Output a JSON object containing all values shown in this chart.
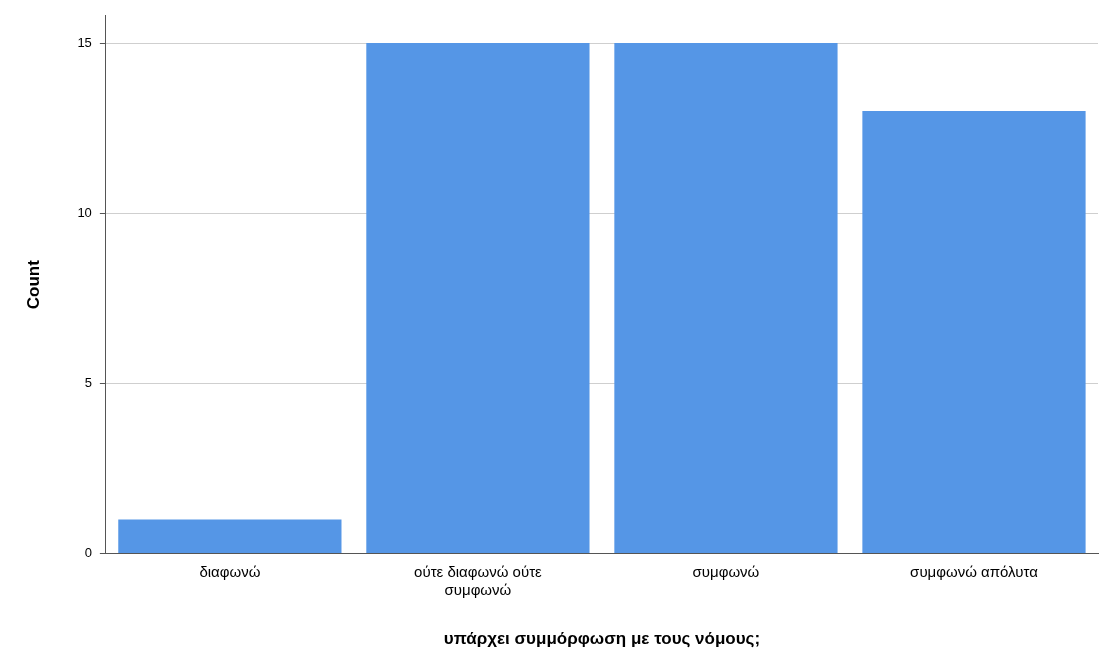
{
  "chart_data": {
    "type": "bar",
    "xlabel": "υπάρχει συμμόρφωση με τους νόμους;",
    "ylabel": "Count",
    "categories": [
      "διαφωνώ",
      "ούτε διαφωνώ ούτε συμφωνώ",
      "συμφωνώ",
      "συμφωνώ απόλυτα"
    ],
    "values": [
      1,
      15,
      15,
      13
    ],
    "color": "#5596e6",
    "ylim": [
      0,
      15.8
    ],
    "yticks": [
      0,
      5,
      10,
      15
    ],
    "grid": "y"
  }
}
